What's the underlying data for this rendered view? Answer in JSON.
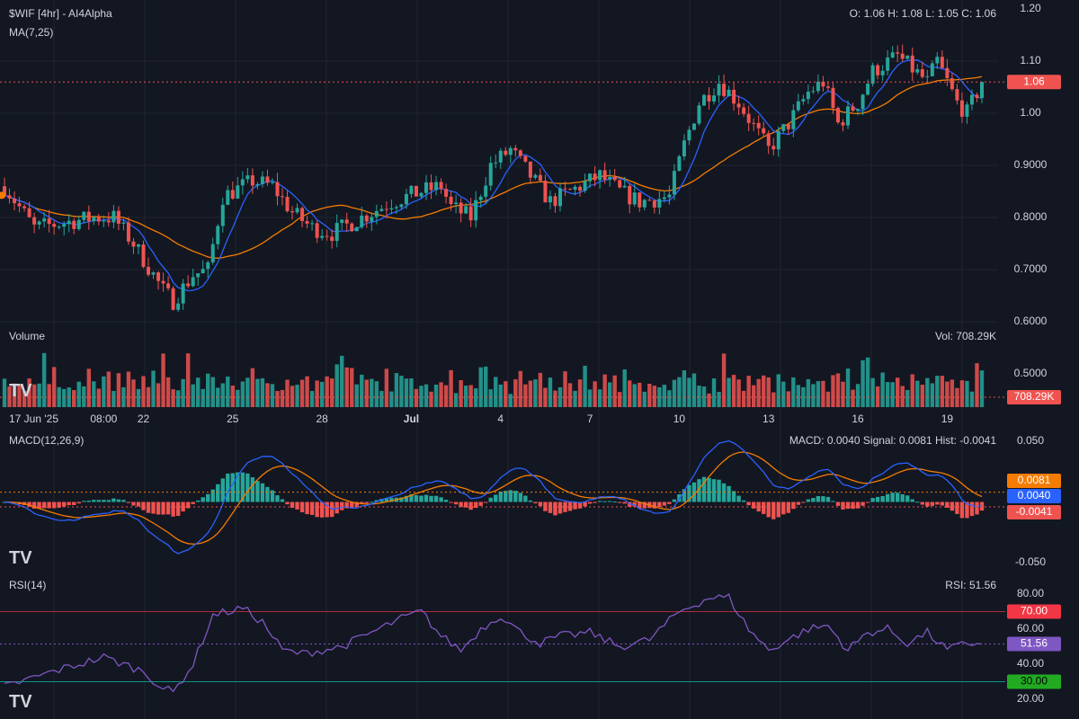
{
  "header": {
    "title": "$WIF [4hr] - AI4Alpha",
    "ma_label": "MA(7,25)",
    "ohlc": "O: 1.06 H: 1.08 L: 1.05 C: 1.06"
  },
  "price_axis": {
    "ticks": [
      {
        "v": 1.2,
        "label": "1.20"
      },
      {
        "v": 1.1,
        "label": "1.10"
      },
      {
        "v": 1.0,
        "label": "1.00"
      },
      {
        "v": 0.9,
        "label": "0.9000"
      },
      {
        "v": 0.8,
        "label": "0.8000"
      },
      {
        "v": 0.7,
        "label": "0.7000"
      },
      {
        "v": 0.6,
        "label": "0.6000"
      },
      {
        "v": 0.5,
        "label": "0.5000"
      }
    ],
    "last_price": 1.06,
    "last_price_label": "1.06"
  },
  "volume": {
    "label": "Volume",
    "value_label": "Vol: 708.29K",
    "tag_label": "708.29K"
  },
  "time_axis": [
    {
      "label": "17 Jun '25",
      "bar": 0,
      "bold": false
    },
    {
      "label": "08:00",
      "bar": 20,
      "bold": false
    },
    {
      "label": "22",
      "bar": 28,
      "bold": false
    },
    {
      "label": "25",
      "bar": 46,
      "bold": false
    },
    {
      "label": "28",
      "bar": 64,
      "bold": false
    },
    {
      "label": "Jul",
      "bar": 82,
      "bold": true
    },
    {
      "label": "4",
      "bar": 100,
      "bold": false
    },
    {
      "label": "7",
      "bar": 118,
      "bold": false
    },
    {
      "label": "10",
      "bar": 136,
      "bold": false
    },
    {
      "label": "13",
      "bar": 154,
      "bold": false
    },
    {
      "label": "16",
      "bar": 172,
      "bold": false
    },
    {
      "label": "19",
      "bar": 190,
      "bold": false
    }
  ],
  "macd": {
    "label": "MACD(12,26,9)",
    "value_label": "MACD: 0.0040 Signal: 0.0081 Hist: -0.0041",
    "ticks": [
      {
        "v": 0.05,
        "label": "0.050"
      },
      {
        "v": -0.05,
        "label": "-0.050"
      }
    ],
    "signal_tag": "0.0081",
    "macd_tag": "0.0040",
    "hist_tag": "-0.0041",
    "signal_value": 0.0081,
    "macd_value": 0.004,
    "hist_value": -0.0041
  },
  "rsi": {
    "label": "RSI(14)",
    "value_label": "RSI: 51.56",
    "ticks": [
      {
        "v": 80,
        "label": "80.00"
      },
      {
        "v": 60,
        "label": "60.00"
      },
      {
        "v": 40,
        "label": "40.00"
      },
      {
        "v": 20,
        "label": "20.00"
      }
    ],
    "overbought": 70,
    "overbought_label": "70.00",
    "oversold": 30,
    "oversold_label": "30.00",
    "current": 51.56,
    "current_label": "51.56"
  },
  "colors": {
    "background": "#131722",
    "grid": "#1f2430",
    "text": "#d1d4dc",
    "up": "#26a69a",
    "down": "#ef5350",
    "ma_fast": "#2962ff",
    "ma_slow": "#f57c00",
    "macd": "#2962ff",
    "signal": "#f57c00",
    "rsi": "#7e57c2",
    "overbought": "#f23645",
    "oversold": "#089981",
    "tag_signal": "#f57c00",
    "tag_macd": "#2962ff",
    "tag_hist": "#ef5350",
    "tag_ob": "#f23645",
    "tag_os": "#22ab22"
  },
  "chart_data": {
    "type": "candlestick",
    "bars": 198,
    "keypoints": [
      [
        0,
        0.86
      ],
      [
        6,
        0.78
      ],
      [
        12,
        0.79
      ],
      [
        18,
        0.8
      ],
      [
        22,
        0.8
      ],
      [
        26,
        0.75
      ],
      [
        32,
        0.66
      ],
      [
        34,
        0.64
      ],
      [
        38,
        0.69
      ],
      [
        41,
        0.7
      ],
      [
        44,
        0.84
      ],
      [
        50,
        0.87
      ],
      [
        54,
        0.86
      ],
      [
        58,
        0.81
      ],
      [
        62,
        0.78
      ],
      [
        66,
        0.77
      ],
      [
        72,
        0.8
      ],
      [
        78,
        0.83
      ],
      [
        84,
        0.85
      ],
      [
        88,
        0.86
      ],
      [
        90,
        0.82
      ],
      [
        94,
        0.8
      ],
      [
        98,
        0.9
      ],
      [
        102,
        0.93
      ],
      [
        106,
        0.88
      ],
      [
        110,
        0.83
      ],
      [
        116,
        0.86
      ],
      [
        120,
        0.88
      ],
      [
        124,
        0.85
      ],
      [
        128,
        0.83
      ],
      [
        134,
        0.84
      ],
      [
        137,
        0.94
      ],
      [
        140,
        1.02
      ],
      [
        144,
        1.06
      ],
      [
        148,
        1.02
      ],
      [
        152,
        0.96
      ],
      [
        154,
        0.93
      ],
      [
        158,
        0.98
      ],
      [
        162,
        1.04
      ],
      [
        165,
        1.06
      ],
      [
        168,
        0.98
      ],
      [
        172,
        1.02
      ],
      [
        175,
        1.08
      ],
      [
        180,
        1.11
      ],
      [
        186,
        1.06
      ],
      [
        188,
        1.1
      ],
      [
        192,
        1.02
      ],
      [
        194,
        1.0
      ],
      [
        197,
        1.06
      ]
    ],
    "rsi_keypoints": [
      [
        0,
        27
      ],
      [
        10,
        36
      ],
      [
        20,
        44
      ],
      [
        28,
        36
      ],
      [
        32,
        26
      ],
      [
        34,
        24
      ],
      [
        38,
        40
      ],
      [
        42,
        68
      ],
      [
        48,
        72
      ],
      [
        52,
        64
      ],
      [
        56,
        48
      ],
      [
        60,
        46
      ],
      [
        68,
        50
      ],
      [
        74,
        58
      ],
      [
        80,
        66
      ],
      [
        84,
        70
      ],
      [
        88,
        56
      ],
      [
        92,
        48
      ],
      [
        96,
        60
      ],
      [
        100,
        68
      ],
      [
        104,
        58
      ],
      [
        108,
        52
      ],
      [
        112,
        56
      ],
      [
        118,
        58
      ],
      [
        124,
        50
      ],
      [
        130,
        54
      ],
      [
        136,
        70
      ],
      [
        142,
        78
      ],
      [
        146,
        78
      ],
      [
        150,
        60
      ],
      [
        154,
        48
      ],
      [
        158,
        54
      ],
      [
        162,
        60
      ],
      [
        166,
        62
      ],
      [
        170,
        48
      ],
      [
        174,
        58
      ],
      [
        178,
        60
      ],
      [
        182,
        52
      ],
      [
        186,
        58
      ],
      [
        190,
        48
      ],
      [
        194,
        52
      ],
      [
        197,
        51.56
      ]
    ],
    "volume_pattern": [
      0.3,
      0.5,
      0.2,
      0.4,
      0.3,
      0.6,
      0.25,
      0.35,
      0.45,
      0.3,
      0.7,
      0.2,
      0.4,
      0.5,
      0.3,
      0.25,
      0.35,
      0.8,
      0.3,
      0.45
    ],
    "macd_range": [
      -0.08,
      0.06
    ],
    "ma_periods": [
      7,
      25
    ]
  }
}
